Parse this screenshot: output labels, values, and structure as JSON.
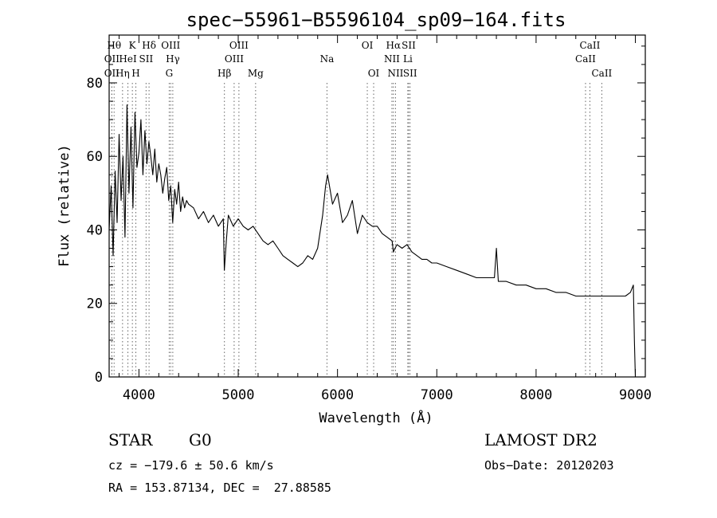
{
  "chart_data": {
    "type": "line",
    "title": "spec−55961−B5596104_sp09−164.fits",
    "xlabel": "Wavelength (Å)",
    "ylabel": "Flux (relative)",
    "xlim": [
      3700,
      9100
    ],
    "ylim": [
      0,
      93
    ],
    "x_ticks": [
      4000,
      5000,
      6000,
      7000,
      8000,
      9000
    ],
    "y_ticks": [
      0,
      20,
      40,
      60,
      80
    ],
    "grid": false,
    "legend": "none",
    "series": [
      {
        "color": "#000000",
        "x": [
          3700,
          3720,
          3740,
          3760,
          3780,
          3800,
          3820,
          3840,
          3860,
          3880,
          3900,
          3920,
          3940,
          3960,
          3980,
          4000,
          4020,
          4040,
          4060,
          4080,
          4100,
          4120,
          4140,
          4160,
          4180,
          4200,
          4220,
          4240,
          4260,
          4280,
          4300,
          4320,
          4340,
          4360,
          4380,
          4400,
          4420,
          4440,
          4460,
          4480,
          4500,
          4550,
          4600,
          4650,
          4700,
          4750,
          4800,
          4850,
          4860,
          4880,
          4900,
          4950,
          5000,
          5050,
          5100,
          5150,
          5200,
          5250,
          5300,
          5350,
          5400,
          5450,
          5500,
          5550,
          5600,
          5650,
          5700,
          5750,
          5800,
          5850,
          5880,
          5900,
          5950,
          6000,
          6050,
          6100,
          6150,
          6200,
          6250,
          6300,
          6350,
          6400,
          6450,
          6500,
          6550,
          6563,
          6580,
          6600,
          6650,
          6700,
          6750,
          6800,
          6850,
          6900,
          6950,
          7000,
          7100,
          7200,
          7300,
          7400,
          7500,
          7580,
          7600,
          7620,
          7700,
          7800,
          7900,
          8000,
          8100,
          8200,
          8300,
          8400,
          8500,
          8600,
          8700,
          8800,
          8900,
          8950,
          8980,
          8990,
          9000
        ],
        "values": [
          40,
          52,
          33,
          56,
          42,
          66,
          48,
          60,
          38,
          74,
          50,
          68,
          46,
          72,
          57,
          61,
          70,
          55,
          67,
          58,
          64,
          60,
          55,
          62,
          53,
          58,
          55,
          50,
          54,
          57,
          48,
          52,
          42,
          51,
          47,
          53,
          45,
          49,
          46,
          48,
          47,
          46,
          43,
          45,
          42,
          44,
          41,
          43,
          29,
          37,
          44,
          41,
          43,
          41,
          40,
          41,
          39,
          37,
          36,
          37,
          35,
          33,
          32,
          31,
          30,
          31,
          33,
          32,
          35,
          44,
          52,
          55,
          47,
          50,
          42,
          44,
          48,
          39,
          44,
          42,
          41,
          41,
          39,
          38,
          37,
          34,
          35,
          36,
          35,
          36,
          34,
          33,
          32,
          32,
          31,
          31,
          30,
          29,
          28,
          27,
          27,
          27,
          35,
          26,
          26,
          25,
          25,
          24,
          24,
          23,
          23,
          22,
          22,
          22,
          22,
          22,
          22,
          23,
          25,
          10,
          0
        ]
      }
    ],
    "line_markers": [
      {
        "label": "OII",
        "x": 3727,
        "row": 2
      },
      {
        "label": "OII",
        "x": 3727,
        "row": 3
      },
      {
        "label": "Hθ",
        "x": 3750,
        "row": 1
      },
      {
        "label": "Hη",
        "x": 3835,
        "row": 3
      },
      {
        "label": "HeI",
        "x": 3889,
        "row": 2
      },
      {
        "label": "K",
        "x": 3934,
        "row": 1
      },
      {
        "label": "H",
        "x": 3969,
        "row": 3
      },
      {
        "label": "SII",
        "x": 4072,
        "row": 2
      },
      {
        "label": "Hδ",
        "x": 4102,
        "row": 1
      },
      {
        "label": "G",
        "x": 4305,
        "row": 3
      },
      {
        "label": "OIII",
        "x": 4320,
        "row": 1
      },
      {
        "label": "Hγ",
        "x": 4341,
        "row": 2
      },
      {
        "label": "Hβ",
        "x": 4861,
        "row": 3
      },
      {
        "label": "OIII",
        "x": 4959,
        "row": 2
      },
      {
        "label": "OIII",
        "x": 5007,
        "row": 1
      },
      {
        "label": "Mg",
        "x": 5175,
        "row": 3
      },
      {
        "label": "Na",
        "x": 5894,
        "row": 2
      },
      {
        "label": "OI",
        "x": 6300,
        "row": 1
      },
      {
        "label": "OI",
        "x": 6364,
        "row": 3
      },
      {
        "label": "NII",
        "x": 6548,
        "row": 2
      },
      {
        "label": "NII",
        "x": 6584,
        "row": 3
      },
      {
        "label": "Hα",
        "x": 6563,
        "row": 1
      },
      {
        "label": "Li",
        "x": 6708,
        "row": 2
      },
      {
        "label": "SII",
        "x": 6717,
        "row": 1
      },
      {
        "label": "SII",
        "x": 6731,
        "row": 3
      },
      {
        "label": "CaII",
        "x": 8498,
        "row": 2
      },
      {
        "label": "CaII",
        "x": 8542,
        "row": 1
      },
      {
        "label": "CaII",
        "x": 8662,
        "row": 3
      }
    ]
  },
  "info": {
    "class": "STAR",
    "subclass": "G0",
    "survey": "LAMOST DR2",
    "cz": "cz = −179.6 ± 50.6 km/s",
    "obs_date": "Obs−Date: 20120203",
    "radec": "RA = 153.87134, DEC =  27.88585"
  }
}
